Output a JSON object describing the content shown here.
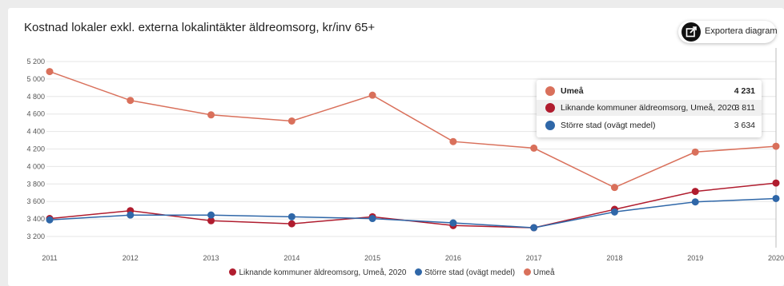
{
  "title": "Kostnad lokaler exkl. externa lokalintäkter äldreomsorg, kr/inv 65+",
  "export_label": "Exportera diagram",
  "colors": {
    "umea": "#d9705b",
    "liknande": "#b01c2e",
    "storre": "#2f67a8"
  },
  "tooltip": {
    "rows": [
      {
        "name": "Umeå",
        "value": "4 231",
        "color": "#d9705b"
      },
      {
        "name": "Liknande kommuner äldreomsorg, Umeå, 2020",
        "value": "3 811",
        "color": "#b01c2e"
      },
      {
        "name": "Större stad (ovägt medel)",
        "value": "3 634",
        "color": "#2f67a8"
      }
    ]
  },
  "chart_data": {
    "type": "line",
    "title": "Kostnad lokaler exkl. externa lokalintäkter äldreomsorg, kr/inv 65+",
    "xlabel": "",
    "ylabel": "",
    "x": [
      "2011",
      "2012",
      "2013",
      "2014",
      "2015",
      "2016",
      "2017",
      "2018",
      "2019",
      "2020"
    ],
    "y_ticks": [
      "5 200",
      "5 000",
      "4 800",
      "4 600",
      "4 400",
      "4 200",
      "4 000",
      "3 800",
      "3 600",
      "3 400",
      "3 200"
    ],
    "y_tick_values": [
      5200,
      5000,
      4800,
      4600,
      4400,
      4200,
      4000,
      3800,
      3600,
      3400,
      3200
    ],
    "ylim": [
      3200,
      5200
    ],
    "grid": true,
    "legend_position": "bottom",
    "series": [
      {
        "name": "Liknande kommuner äldreomsorg, Umeå, 2020",
        "color": "#b01c2e",
        "values": [
          3405,
          3495,
          3380,
          3345,
          3425,
          3325,
          3300,
          3510,
          3715,
          3811
        ]
      },
      {
        "name": "Större stad (ovägt medel)",
        "color": "#2f67a8",
        "values": [
          3390,
          3445,
          3445,
          3425,
          3405,
          3355,
          3300,
          3480,
          3595,
          3634
        ]
      },
      {
        "name": "Umeå",
        "color": "#d9705b",
        "values": [
          5085,
          4755,
          4590,
          4520,
          4815,
          4285,
          4210,
          3760,
          4165,
          4231
        ]
      }
    ]
  }
}
